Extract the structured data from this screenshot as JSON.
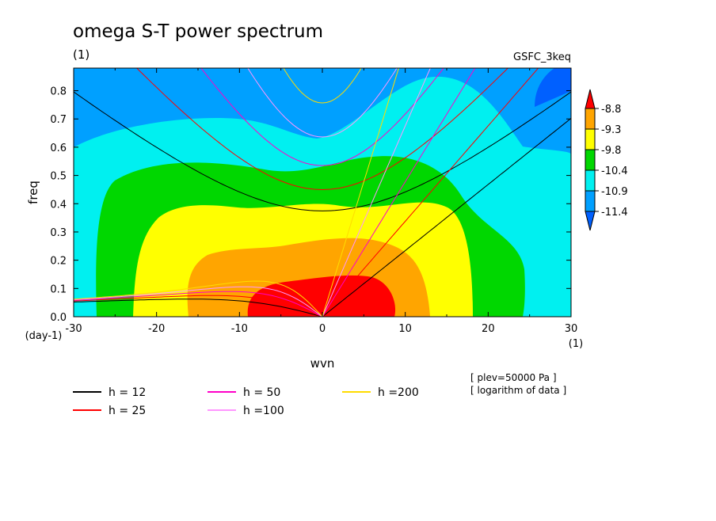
{
  "title": "omega S-T power spectrum",
  "subtitle_left": "(1)",
  "subtitle_right": "GSFC_3keq",
  "x_unit_label": "(1)",
  "y_unit_label": "(day-1)",
  "notes": [
    "[ plev=50000 Pa ]",
    "[ logarithm of data ]"
  ],
  "chart_data": {
    "type": "heatmap",
    "title": "omega S-T power spectrum",
    "xlabel": "wvn",
    "ylabel": "freq",
    "xlim": [
      -30,
      30
    ],
    "ylim": [
      0,
      0.88
    ],
    "x_ticks": [
      -30,
      -20,
      -10,
      0,
      10,
      20,
      30
    ],
    "x_tick_labels": [
      "-30",
      "-20",
      "-10",
      "0",
      "10",
      "20",
      "30"
    ],
    "y_ticks": [
      0,
      0.1,
      0.2,
      0.3,
      0.4,
      0.5,
      0.6,
      0.7,
      0.8
    ],
    "y_tick_labels": [
      "0.0",
      "0.1",
      "0.2",
      "0.3",
      "0.4",
      "0.5",
      "0.6",
      "0.7",
      "0.8"
    ],
    "colorbar": {
      "levels": [
        "-8.8",
        "-9.3",
        "-9.8",
        "-10.4",
        "-10.9",
        "-11.4"
      ],
      "colors": [
        "#ff0000",
        "#ffa500",
        "#ffff00",
        "#00d700",
        "#00f0f0",
        "#00a0ff",
        "#0060ff"
      ]
    },
    "contour_regions": [
      {
        "level": "<-11.4",
        "color": "#0060ff",
        "approx_region": "upper-left and upper-right corners above 0.78"
      },
      {
        "level": "-11.4 to -10.9",
        "color": "#00a0ff",
        "approx_region": "upper band, freq > 0.6"
      },
      {
        "level": "-10.9 to -10.4",
        "color": "#00f0f0",
        "approx_region": "middle band"
      },
      {
        "level": "-10.4 to -9.8",
        "color": "#00d700",
        "approx_region": "wvn -25..24, freq < 0.57"
      },
      {
        "level": "-9.8 to -9.3",
        "color": "#ffff00",
        "approx_region": "wvn -22..18, freq < 0.4"
      },
      {
        "level": "-9.3 to -8.8",
        "color": "#ffa500",
        "approx_region": "wvn -16..13, freq < 0.27"
      },
      {
        "level": ">-8.8",
        "color": "#ff0000",
        "approx_region": "wvn -9..9, freq < 0.16"
      }
    ],
    "series": [
      {
        "name": "h = 12",
        "color": "#000000"
      },
      {
        "name": "h = 25",
        "color": "#ff0000"
      },
      {
        "name": "h = 50",
        "color": "#ff00c8"
      },
      {
        "name": "h =100",
        "color": "#ff96ff"
      },
      {
        "name": "h =200",
        "color": "#ffdc00"
      }
    ]
  }
}
